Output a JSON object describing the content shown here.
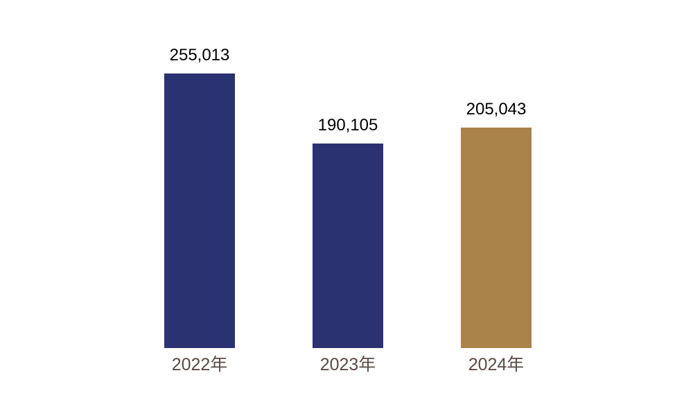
{
  "chart_data": {
    "type": "bar",
    "title": "",
    "xlabel": "",
    "ylabel": "",
    "categories": [
      "2022年",
      "2023年",
      "2024年"
    ],
    "values": [
      255013,
      190105,
      205043
    ],
    "value_labels": [
      "255,013",
      "190,105",
      "205,043"
    ],
    "bar_colors": [
      "#2b3272",
      "#2b3272",
      "#a9834a"
    ],
    "ylim": [
      0,
      255013
    ],
    "grid": false,
    "axes_visible": false,
    "legend_position": "none",
    "value_label_color": "#000000",
    "category_label_color": "#5a4b43",
    "background_color": "#ffffff"
  }
}
